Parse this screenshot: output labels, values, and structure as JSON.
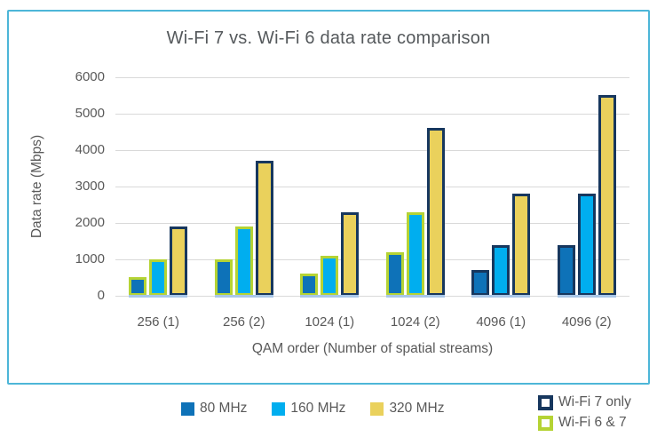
{
  "chart_data": {
    "type": "bar",
    "title": "Wi-Fi 7 vs. Wi-Fi 6 data rate comparison",
    "xlabel": "QAM order (Number of spatial streams)",
    "ylabel": "Data rate (Mbps)",
    "ylim": [
      0,
      6000
    ],
    "ytick_interval": 1000,
    "yticks": [
      "6000",
      "5000",
      "4000",
      "3000",
      "2000",
      "1000",
      "0"
    ],
    "grid": true,
    "legend_position": "bottom",
    "categories": [
      "256 (1)",
      "256 (2)",
      "1024 (1)",
      "1024 (2)",
      "4096 (1)",
      "4096 (2)"
    ],
    "series": [
      {
        "name": "80 MHz",
        "color": "#0e72b8",
        "values": [
          500,
          1000,
          600,
          1200,
          700,
          1400
        ],
        "outlines": [
          "wifi6and7",
          "wifi6and7",
          "wifi6and7",
          "wifi6and7",
          "wifi7only",
          "wifi7only"
        ]
      },
      {
        "name": "160 MHz",
        "color": "#00aeef",
        "values": [
          1000,
          1900,
          1100,
          2300,
          1400,
          2800
        ],
        "outlines": [
          "wifi6and7",
          "wifi6and7",
          "wifi6and7",
          "wifi6and7",
          "wifi7only",
          "wifi7only"
        ]
      },
      {
        "name": "320 MHz",
        "color": "#ead15c",
        "values": [
          1900,
          3700,
          2300,
          4600,
          2800,
          5500
        ],
        "outlines": [
          "wifi7only",
          "wifi7only",
          "wifi7only",
          "wifi7only",
          "wifi7only",
          "wifi7only"
        ]
      }
    ],
    "outline_legend": [
      {
        "key": "wifi7only",
        "name": "Wi-Fi 7 only",
        "color": "#17375e"
      },
      {
        "key": "wifi6and7",
        "name": "Wi-Fi 6 & 7",
        "color": "#b5d334"
      }
    ]
  },
  "colors": {
    "border": "#4db6d8",
    "gridline": "#d9d9d9",
    "baseline": "#a9c7e8",
    "text": "#595959"
  }
}
